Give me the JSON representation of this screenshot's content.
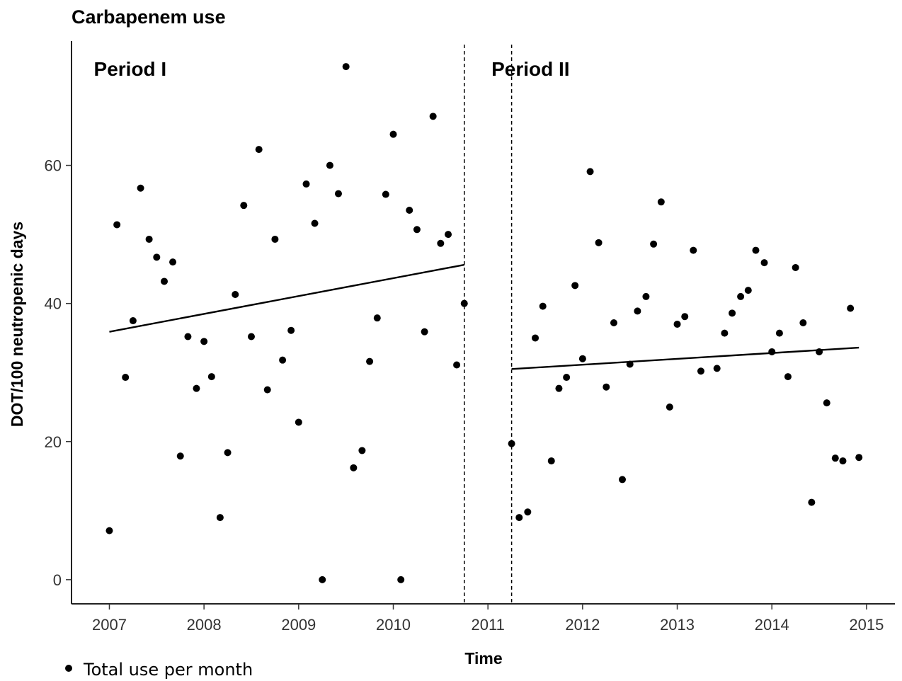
{
  "chart_data": {
    "type": "scatter",
    "title": "Carbapenem use",
    "xlabel": "Time",
    "ylabel": "DOT/100 neutropenic days",
    "xlim": [
      2006.6,
      2015.3
    ],
    "ylim": [
      -3.5,
      78
    ],
    "x_ticks": [
      "2007",
      "2008",
      "2009",
      "2010",
      "2011",
      "2012",
      "2013",
      "2014",
      "2015"
    ],
    "y_ticks": [
      "0",
      "20",
      "40",
      "60"
    ],
    "grid": false,
    "legend": {
      "position": "bottom-left",
      "entries": [
        "Total use per month"
      ]
    },
    "periods": [
      {
        "label": "Period I",
        "label_x": 2007.22,
        "label_y": 73
      },
      {
        "label": "Period II",
        "label_x": 2011.45,
        "label_y": 73
      }
    ],
    "vlines": [
      2010.75,
      2011.25
    ],
    "series": [
      {
        "name": "Total use per month",
        "marker": "point",
        "points": [
          [
            2007.0,
            7.1
          ],
          [
            2007.08,
            51.4
          ],
          [
            2007.17,
            29.3
          ],
          [
            2007.25,
            37.5
          ],
          [
            2007.33,
            56.7
          ],
          [
            2007.42,
            49.3
          ],
          [
            2007.5,
            46.7
          ],
          [
            2007.58,
            43.2
          ],
          [
            2007.67,
            46.0
          ],
          [
            2007.75,
            17.9
          ],
          [
            2007.83,
            35.2
          ],
          [
            2007.92,
            27.7
          ],
          [
            2008.0,
            34.5
          ],
          [
            2008.08,
            29.4
          ],
          [
            2008.17,
            9.0
          ],
          [
            2008.25,
            18.4
          ],
          [
            2008.33,
            41.3
          ],
          [
            2008.42,
            54.2
          ],
          [
            2008.5,
            35.2
          ],
          [
            2008.58,
            62.3
          ],
          [
            2008.67,
            27.5
          ],
          [
            2008.75,
            49.3
          ],
          [
            2008.83,
            31.8
          ],
          [
            2008.92,
            36.1
          ],
          [
            2009.0,
            22.8
          ],
          [
            2009.08,
            57.3
          ],
          [
            2009.17,
            51.6
          ],
          [
            2009.25,
            0.0
          ],
          [
            2009.33,
            60.0
          ],
          [
            2009.42,
            55.9
          ],
          [
            2009.5,
            74.3
          ],
          [
            2009.58,
            16.2
          ],
          [
            2009.67,
            18.7
          ],
          [
            2009.75,
            31.6
          ],
          [
            2009.83,
            37.9
          ],
          [
            2009.92,
            55.8
          ],
          [
            2010.0,
            64.5
          ],
          [
            2010.08,
            0.0
          ],
          [
            2010.17,
            53.5
          ],
          [
            2010.25,
            50.7
          ],
          [
            2010.33,
            35.9
          ],
          [
            2010.42,
            67.1
          ],
          [
            2010.5,
            48.7
          ],
          [
            2010.58,
            50.0
          ],
          [
            2010.67,
            31.1
          ],
          [
            2010.75,
            40.0
          ],
          [
            2011.25,
            19.7
          ],
          [
            2011.33,
            9.0
          ],
          [
            2011.42,
            9.8
          ],
          [
            2011.5,
            35.0
          ],
          [
            2011.58,
            39.6
          ],
          [
            2011.67,
            17.2
          ],
          [
            2011.75,
            27.7
          ],
          [
            2011.83,
            29.3
          ],
          [
            2011.92,
            42.6
          ],
          [
            2012.0,
            32.0
          ],
          [
            2012.08,
            59.1
          ],
          [
            2012.17,
            48.8
          ],
          [
            2012.25,
            27.9
          ],
          [
            2012.33,
            37.2
          ],
          [
            2012.42,
            14.5
          ],
          [
            2012.5,
            31.2
          ],
          [
            2012.58,
            38.9
          ],
          [
            2012.67,
            41.0
          ],
          [
            2012.75,
            48.6
          ],
          [
            2012.83,
            54.7
          ],
          [
            2012.92,
            25.0
          ],
          [
            2013.0,
            37.0
          ],
          [
            2013.08,
            38.1
          ],
          [
            2013.17,
            47.7
          ],
          [
            2013.25,
            30.2
          ],
          [
            2013.42,
            30.6
          ],
          [
            2013.5,
            35.7
          ],
          [
            2013.58,
            38.6
          ],
          [
            2013.67,
            41.0
          ],
          [
            2013.75,
            41.9
          ],
          [
            2013.83,
            47.7
          ],
          [
            2013.92,
            45.9
          ],
          [
            2014.0,
            33.0
          ],
          [
            2014.08,
            35.7
          ],
          [
            2014.17,
            29.4
          ],
          [
            2014.25,
            45.2
          ],
          [
            2014.33,
            37.2
          ],
          [
            2014.42,
            11.2
          ],
          [
            2014.5,
            33.0
          ],
          [
            2014.58,
            25.6
          ],
          [
            2014.67,
            17.6
          ],
          [
            2014.75,
            17.2
          ],
          [
            2014.83,
            39.3
          ],
          [
            2014.92,
            17.7
          ]
        ]
      },
      {
        "name": "",
        "marker": "line",
        "segments": [
          [
            [
              2007.0,
              35.9
            ],
            [
              2010.75,
              45.6
            ]
          ],
          [
            [
              2011.25,
              30.5
            ],
            [
              2014.92,
              33.6
            ]
          ]
        ]
      }
    ]
  }
}
